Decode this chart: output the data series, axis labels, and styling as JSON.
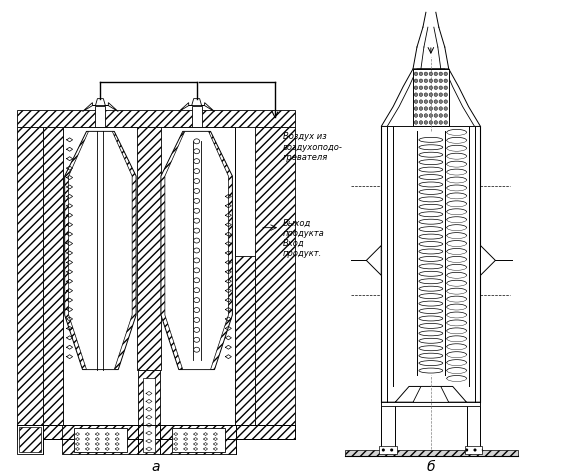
{
  "bg_color": "#ffffff",
  "label_a": "а",
  "label_b": "б",
  "text_air": "Воздух из\nвоздухоподо-\nгревателя",
  "text_out": "Выход\nпродукта",
  "text_in": "Вход\nпродукт.",
  "figsize": [
    5.64,
    4.77
  ],
  "dpi": 100
}
